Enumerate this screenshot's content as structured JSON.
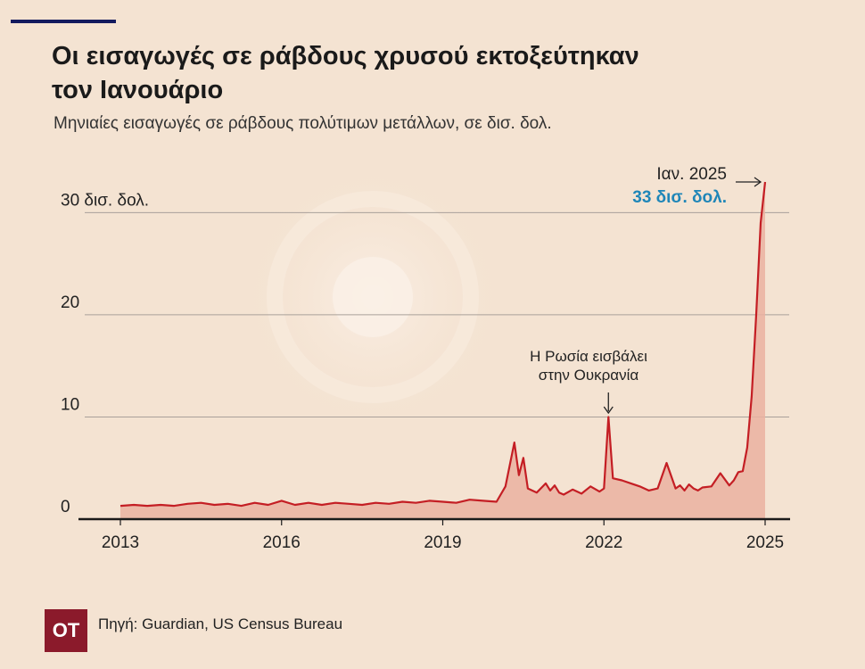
{
  "header": {
    "title": "Οι εισαγωγές σε ράβδους χρυσού εκτοξεύτηκαν τον Ιανουάριο",
    "subtitle": "Μηνιαίες εισαγωγές σε ράβδους πολύτιμων μετάλλων, σε δισ. δολ."
  },
  "footer": {
    "logo": "OT",
    "source": "Πηγή: Guardian, US Census Bureau"
  },
  "colors": {
    "line": "#c41e24",
    "area": "#eab1a1",
    "highlight": "#1f86b8",
    "grid": "#a9a09a",
    "axis": "#1a1a1a"
  },
  "chart_data": {
    "type": "area",
    "title": "Οι εισαγωγές σε ράβδους χρυσού εκτοξεύτηκαν τον Ιανουάριο",
    "subtitle": "Μηνιαίες εισαγωγές σε ράβδους πολύτιμων μετάλλων, σε δισ. δολ.",
    "xlabel": "",
    "ylabel": "",
    "ylim": [
      0,
      33
    ],
    "xlim": [
      "2013-01",
      "2025-01"
    ],
    "y_ticks": [
      {
        "value": 0,
        "label": "0"
      },
      {
        "value": 10,
        "label": "10"
      },
      {
        "value": 20,
        "label": "20"
      },
      {
        "value": 30,
        "label": "30 δισ. δολ."
      }
    ],
    "x_ticks": [
      {
        "value": "2013-01",
        "label": "2013"
      },
      {
        "value": "2016-01",
        "label": "2016"
      },
      {
        "value": "2019-01",
        "label": "2019"
      },
      {
        "value": "2022-01",
        "label": "2022"
      },
      {
        "value": "2025-01",
        "label": "2025"
      }
    ],
    "grid": true,
    "annotations": [
      {
        "x": "2022-02",
        "y": 10.0,
        "lines": [
          "Η Ρωσία εισβάλει",
          "στην Ουκρανία"
        ]
      },
      {
        "x": "2025-01",
        "y": 33.0,
        "lines": [
          "Ιαν. 2025",
          "33 δισ. δολ."
        ]
      }
    ],
    "series": [
      {
        "x": [
          "2013-01",
          "2013-04",
          "2013-07",
          "2013-10",
          "2014-01",
          "2014-04",
          "2014-07",
          "2014-10",
          "2015-01",
          "2015-04",
          "2015-07",
          "2015-10",
          "2016-01",
          "2016-04",
          "2016-07",
          "2016-10",
          "2017-01",
          "2017-04",
          "2017-07",
          "2017-10",
          "2018-01",
          "2018-04",
          "2018-07",
          "2018-10",
          "2019-01",
          "2019-04",
          "2019-07",
          "2019-10",
          "2020-01",
          "2020-03",
          "2020-05",
          "2020-06",
          "2020-07",
          "2020-08",
          "2020-10",
          "2020-12",
          "2021-01",
          "2021-02",
          "2021-03",
          "2021-04",
          "2021-06",
          "2021-08",
          "2021-10",
          "2021-12",
          "2022-01",
          "2022-02",
          "2022-03",
          "2022-05",
          "2022-07",
          "2022-09",
          "2022-11",
          "2023-01",
          "2023-03",
          "2023-05",
          "2023-06",
          "2023-07",
          "2023-08",
          "2023-09",
          "2023-10",
          "2023-11",
          "2024-01",
          "2024-03",
          "2024-05",
          "2024-06",
          "2024-07",
          "2024-08",
          "2024-09",
          "2024-10",
          "2024-11",
          "2024-12",
          "2025-01"
        ],
        "values": [
          1.3,
          1.4,
          1.3,
          1.4,
          1.3,
          1.5,
          1.6,
          1.4,
          1.5,
          1.3,
          1.6,
          1.4,
          1.8,
          1.4,
          1.6,
          1.4,
          1.6,
          1.5,
          1.4,
          1.6,
          1.5,
          1.7,
          1.6,
          1.8,
          1.7,
          1.6,
          1.9,
          1.8,
          1.7,
          3.2,
          7.5,
          4.3,
          6.0,
          3.0,
          2.6,
          3.5,
          2.8,
          3.3,
          2.6,
          2.4,
          2.9,
          2.5,
          3.2,
          2.7,
          3.0,
          10.0,
          4.0,
          3.8,
          3.5,
          3.2,
          2.8,
          3.0,
          5.5,
          3.0,
          3.3,
          2.8,
          3.4,
          3.0,
          2.8,
          3.1,
          3.2,
          4.5,
          3.3,
          3.8,
          4.6,
          4.7,
          7.0,
          12.0,
          20.0,
          29.0,
          33.0
        ]
      }
    ]
  }
}
